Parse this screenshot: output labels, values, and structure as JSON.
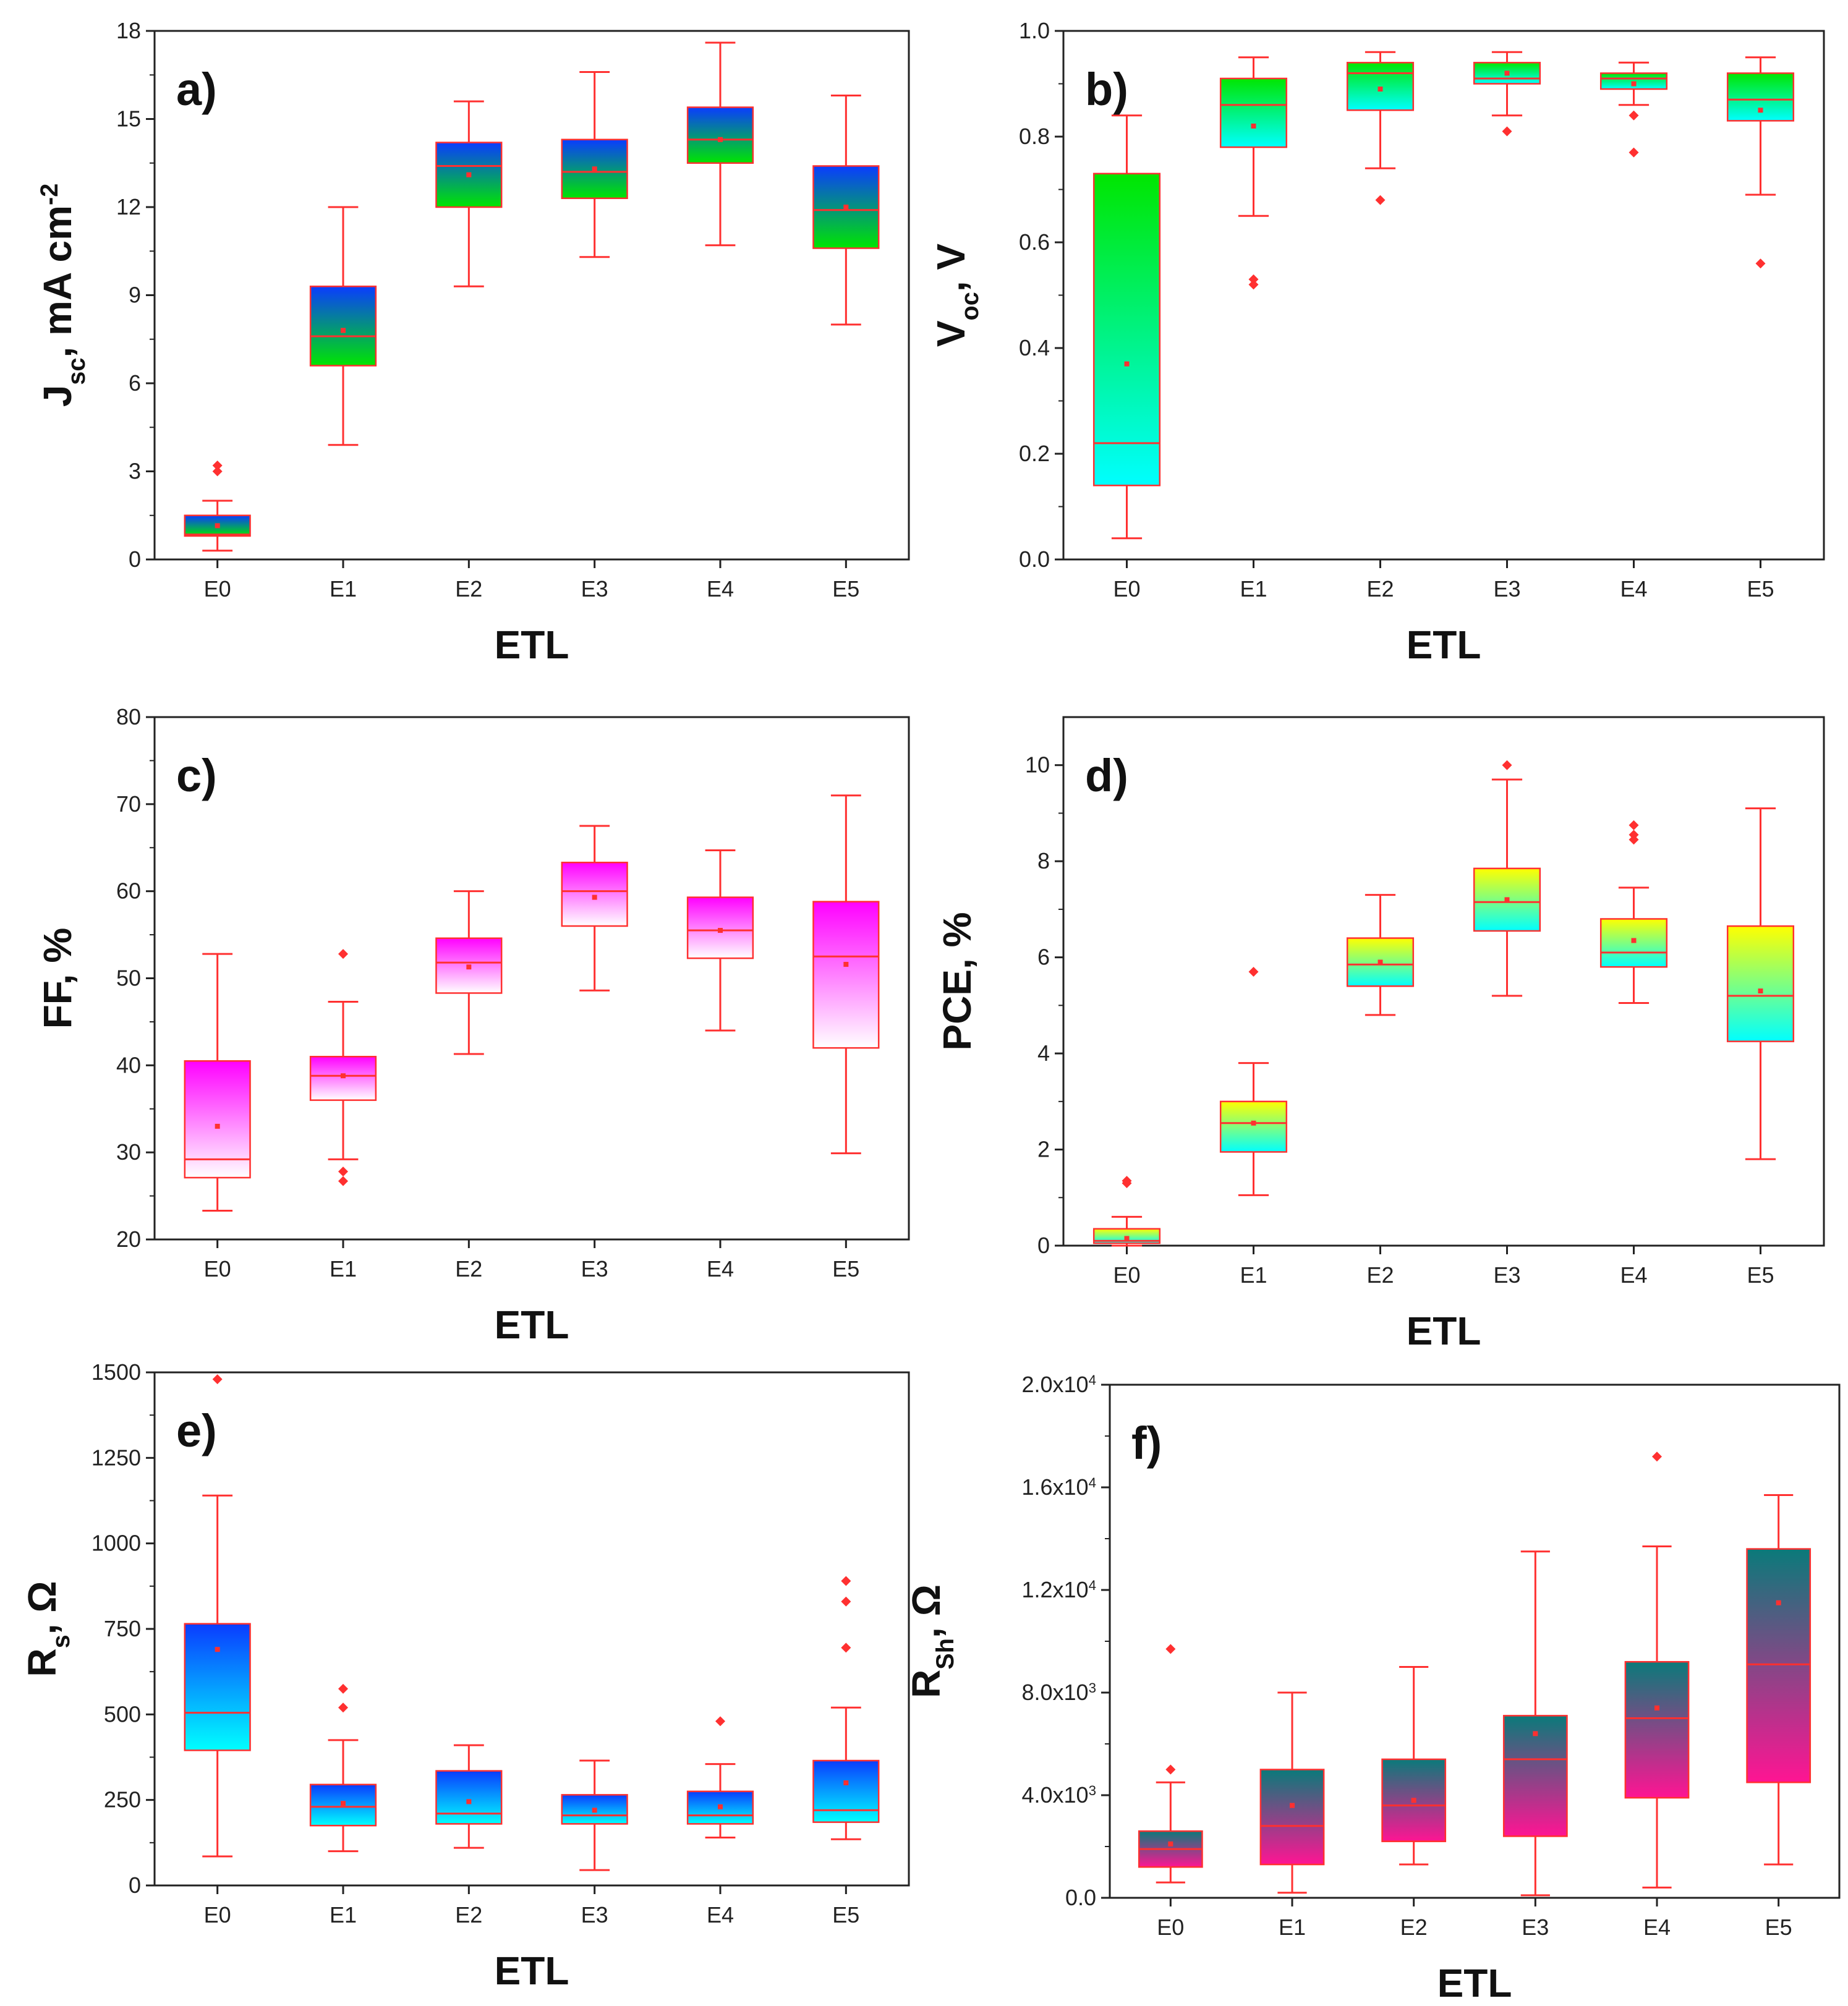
{
  "chart_data": [
    {
      "panel": "a)",
      "type": "box",
      "xlabel": "ETL",
      "ylabel": "J_sc, mA cm^-2",
      "ylabel_parts": [
        [
          "J",
          "base"
        ],
        [
          "sc",
          "sub"
        ],
        [
          ", mA cm",
          "base"
        ],
        [
          "-2",
          "sup"
        ]
      ],
      "ylim": [
        0,
        18
      ],
      "yticks": [
        0,
        3,
        6,
        9,
        12,
        15,
        18
      ],
      "ytick_labels": [
        "0",
        "3",
        "6",
        "9",
        "12",
        "15",
        "18"
      ],
      "categories": [
        "E0",
        "E1",
        "E2",
        "E3",
        "E4",
        "E5"
      ],
      "gradient": [
        "#0a3cff",
        "#00e600"
      ],
      "boxes": [
        {
          "min": 0.3,
          "q1": 0.8,
          "median": 0.85,
          "q3": 1.5,
          "max": 2.0,
          "mean": 1.15,
          "outliers": [
            3.0,
            3.2
          ]
        },
        {
          "min": 3.9,
          "q1": 6.6,
          "median": 7.6,
          "q3": 9.3,
          "max": 12.0,
          "mean": 7.8,
          "outliers": []
        },
        {
          "min": 9.3,
          "q1": 12.0,
          "median": 13.4,
          "q3": 14.2,
          "max": 15.6,
          "mean": 13.1,
          "outliers": []
        },
        {
          "min": 10.3,
          "q1": 12.3,
          "median": 13.2,
          "q3": 14.3,
          "max": 16.6,
          "mean": 13.3,
          "outliers": []
        },
        {
          "min": 10.7,
          "q1": 13.5,
          "median": 14.3,
          "q3": 15.4,
          "max": 17.6,
          "mean": 14.3,
          "outliers": []
        },
        {
          "min": 8.0,
          "q1": 10.6,
          "median": 11.9,
          "q3": 13.4,
          "max": 15.8,
          "mean": 12.0,
          "outliers": []
        }
      ]
    },
    {
      "panel": "b)",
      "type": "box",
      "xlabel": "ETL",
      "ylabel": "V_oc, V",
      "ylabel_parts": [
        [
          "V",
          "base"
        ],
        [
          "oc",
          "sub"
        ],
        [
          ", V",
          "base"
        ]
      ],
      "ylim": [
        0,
        1.0
      ],
      "yticks": [
        0,
        0.2,
        0.4,
        0.6,
        0.8,
        1.0
      ],
      "ytick_labels": [
        "0.0",
        "0.2",
        "0.4",
        "0.6",
        "0.8",
        "1.0"
      ],
      "categories": [
        "E0",
        "E1",
        "E2",
        "E3",
        "E4",
        "E5"
      ],
      "gradient": [
        "#00e600",
        "#00ffff"
      ],
      "boxes": [
        {
          "min": 0.04,
          "q1": 0.14,
          "median": 0.22,
          "q3": 0.73,
          "max": 0.84,
          "mean": 0.37,
          "outliers": []
        },
        {
          "min": 0.65,
          "q1": 0.78,
          "median": 0.86,
          "q3": 0.91,
          "max": 0.95,
          "mean": 0.82,
          "outliers": [
            0.52,
            0.53
          ]
        },
        {
          "min": 0.74,
          "q1": 0.85,
          "median": 0.92,
          "q3": 0.94,
          "max": 0.96,
          "mean": 0.89,
          "outliers": [
            0.68
          ]
        },
        {
          "min": 0.84,
          "q1": 0.9,
          "median": 0.91,
          "q3": 0.94,
          "max": 0.96,
          "mean": 0.92,
          "outliers": [
            0.81
          ]
        },
        {
          "min": 0.86,
          "q1": 0.89,
          "median": 0.91,
          "q3": 0.92,
          "max": 0.94,
          "mean": 0.9,
          "outliers": [
            0.84,
            0.77
          ]
        },
        {
          "min": 0.69,
          "q1": 0.83,
          "median": 0.87,
          "q3": 0.92,
          "max": 0.95,
          "mean": 0.85,
          "outliers": [
            0.56
          ]
        }
      ]
    },
    {
      "panel": "c)",
      "type": "box",
      "xlabel": "ETL",
      "ylabel": "FF, %",
      "ylabel_parts": [
        [
          "FF, %",
          "base"
        ]
      ],
      "ylim": [
        20,
        80
      ],
      "yticks": [
        20,
        30,
        40,
        50,
        60,
        70,
        80
      ],
      "ytick_labels": [
        "20",
        "30",
        "40",
        "50",
        "60",
        "70",
        "80"
      ],
      "categories": [
        "E0",
        "E1",
        "E2",
        "E3",
        "E4",
        "E5"
      ],
      "gradient": [
        "#ff00ff",
        "#ffffff"
      ],
      "boxes": [
        {
          "min": 23.3,
          "q1": 27.1,
          "median": 29.2,
          "q3": 40.5,
          "max": 52.8,
          "mean": 33.0,
          "outliers": []
        },
        {
          "min": 29.2,
          "q1": 36.0,
          "median": 38.8,
          "q3": 41.0,
          "max": 47.3,
          "mean": 38.8,
          "outliers": [
            26.7,
            27.8,
            52.8
          ]
        },
        {
          "min": 41.3,
          "q1": 48.3,
          "median": 51.8,
          "q3": 54.6,
          "max": 60.0,
          "mean": 51.3,
          "outliers": []
        },
        {
          "min": 48.6,
          "q1": 56.0,
          "median": 60.0,
          "q3": 63.3,
          "max": 67.5,
          "mean": 59.3,
          "outliers": []
        },
        {
          "min": 44.0,
          "q1": 52.3,
          "median": 55.5,
          "q3": 59.3,
          "max": 64.7,
          "mean": 55.5,
          "outliers": []
        },
        {
          "min": 29.9,
          "q1": 42.0,
          "median": 52.5,
          "q3": 58.8,
          "max": 71.0,
          "mean": 51.6,
          "outliers": []
        }
      ]
    },
    {
      "panel": "d)",
      "type": "box",
      "xlabel": "ETL",
      "ylabel": "PCE, %",
      "ylabel_parts": [
        [
          "PCE, %",
          "base"
        ]
      ],
      "ylim": [
        0,
        11
      ],
      "yticks": [
        0,
        2,
        4,
        6,
        8,
        10
      ],
      "ytick_labels": [
        "0",
        "2",
        "4",
        "6",
        "8",
        "10"
      ],
      "categories": [
        "E0",
        "E1",
        "E2",
        "E3",
        "E4",
        "E5"
      ],
      "gradient": [
        "#ffff00",
        "#00ffff"
      ],
      "boxes": [
        {
          "min": 0.0,
          "q1": 0.05,
          "median": 0.1,
          "q3": 0.35,
          "max": 0.6,
          "mean": 0.15,
          "outliers": [
            1.3,
            1.35
          ]
        },
        {
          "min": 1.05,
          "q1": 1.95,
          "median": 2.55,
          "q3": 3.0,
          "max": 3.8,
          "mean": 2.55,
          "outliers": [
            5.7
          ]
        },
        {
          "min": 4.8,
          "q1": 5.4,
          "median": 5.85,
          "q3": 6.4,
          "max": 7.3,
          "mean": 5.9,
          "outliers": []
        },
        {
          "min": 5.2,
          "q1": 6.55,
          "median": 7.15,
          "q3": 7.85,
          "max": 9.7,
          "mean": 7.2,
          "outliers": [
            10.0
          ]
        },
        {
          "min": 5.05,
          "q1": 5.8,
          "median": 6.1,
          "q3": 6.8,
          "max": 7.45,
          "mean": 6.35,
          "outliers": [
            8.45,
            8.55,
            8.75
          ]
        },
        {
          "min": 1.8,
          "q1": 4.25,
          "median": 5.2,
          "q3": 6.65,
          "max": 9.1,
          "mean": 5.3,
          "outliers": []
        }
      ]
    },
    {
      "panel": "e)",
      "type": "box",
      "xlabel": "ETL",
      "ylabel": "R_s, Ω",
      "ylabel_parts": [
        [
          "R",
          "base"
        ],
        [
          "s",
          "sub"
        ],
        [
          ", Ω",
          "base"
        ]
      ],
      "ylim": [
        0,
        1500
      ],
      "yticks": [
        0,
        250,
        500,
        750,
        1000,
        1250,
        1500
      ],
      "ytick_labels": [
        "0",
        "250",
        "500",
        "750",
        "1000",
        "1250",
        "1500"
      ],
      "categories": [
        "E0",
        "E1",
        "E2",
        "E3",
        "E4",
        "E5"
      ],
      "gradient": [
        "#0a3cff",
        "#00ffff"
      ],
      "boxes": [
        {
          "min": 85,
          "q1": 395,
          "median": 505,
          "q3": 765,
          "max": 1140,
          "mean": 690,
          "outliers": [
            1480
          ]
        },
        {
          "min": 100,
          "q1": 175,
          "median": 230,
          "q3": 295,
          "max": 425,
          "mean": 240,
          "outliers": [
            520,
            575
          ]
        },
        {
          "min": 110,
          "q1": 180,
          "median": 210,
          "q3": 335,
          "max": 410,
          "mean": 245,
          "outliers": []
        },
        {
          "min": 45,
          "q1": 180,
          "median": 205,
          "q3": 265,
          "max": 365,
          "mean": 220,
          "outliers": []
        },
        {
          "min": 140,
          "q1": 180,
          "median": 205,
          "q3": 275,
          "max": 355,
          "mean": 230,
          "outliers": [
            480
          ]
        },
        {
          "min": 135,
          "q1": 185,
          "median": 220,
          "q3": 365,
          "max": 520,
          "mean": 300,
          "outliers": [
            695,
            830,
            890
          ]
        }
      ]
    },
    {
      "panel": "f)",
      "type": "box",
      "xlabel": "ETL",
      "ylabel": "R_Sh, Ω",
      "ylabel_parts": [
        [
          "R",
          "base"
        ],
        [
          "Sh",
          "sub"
        ],
        [
          ", Ω",
          "base"
        ]
      ],
      "ylim": [
        0,
        20000
      ],
      "yticks": [
        0,
        4000,
        8000,
        12000,
        16000,
        20000
      ],
      "ytick_labels": [
        [
          [
            "0.0",
            "base"
          ]
        ],
        [
          [
            "4.0x10",
            "base"
          ],
          [
            "3",
            "sup"
          ]
        ],
        [
          [
            "8.0x10",
            "base"
          ],
          [
            "3",
            "sup"
          ]
        ],
        [
          [
            "1.2x10",
            "base"
          ],
          [
            "4",
            "sup"
          ]
        ],
        [
          [
            "1.6x10",
            "base"
          ],
          [
            "4",
            "sup"
          ]
        ],
        [
          [
            "2.0x10",
            "base"
          ],
          [
            "4",
            "sup"
          ]
        ]
      ],
      "categories": [
        "E0",
        "E1",
        "E2",
        "E3",
        "E4",
        "E5"
      ],
      "gradient": [
        "#0a7a7a",
        "#ff1493"
      ],
      "boxes": [
        {
          "min": 600,
          "q1": 1200,
          "median": 1900,
          "q3": 2600,
          "max": 4500,
          "mean": 2100,
          "outliers": [
            5000,
            9700
          ]
        },
        {
          "min": 200,
          "q1": 1300,
          "median": 2800,
          "q3": 5000,
          "max": 8000,
          "mean": 3600,
          "outliers": []
        },
        {
          "min": 1300,
          "q1": 2200,
          "median": 3600,
          "q3": 5400,
          "max": 9000,
          "mean": 3800,
          "outliers": []
        },
        {
          "min": 100,
          "q1": 2400,
          "median": 5400,
          "q3": 7100,
          "max": 13500,
          "mean": 6400,
          "outliers": []
        },
        {
          "min": 400,
          "q1": 3900,
          "median": 7000,
          "q3": 9200,
          "max": 13700,
          "mean": 7400,
          "outliers": [
            17200
          ]
        },
        {
          "min": 1300,
          "q1": 4500,
          "median": 9100,
          "q3": 13600,
          "max": 15700,
          "mean": 11500,
          "outliers": []
        }
      ]
    }
  ]
}
